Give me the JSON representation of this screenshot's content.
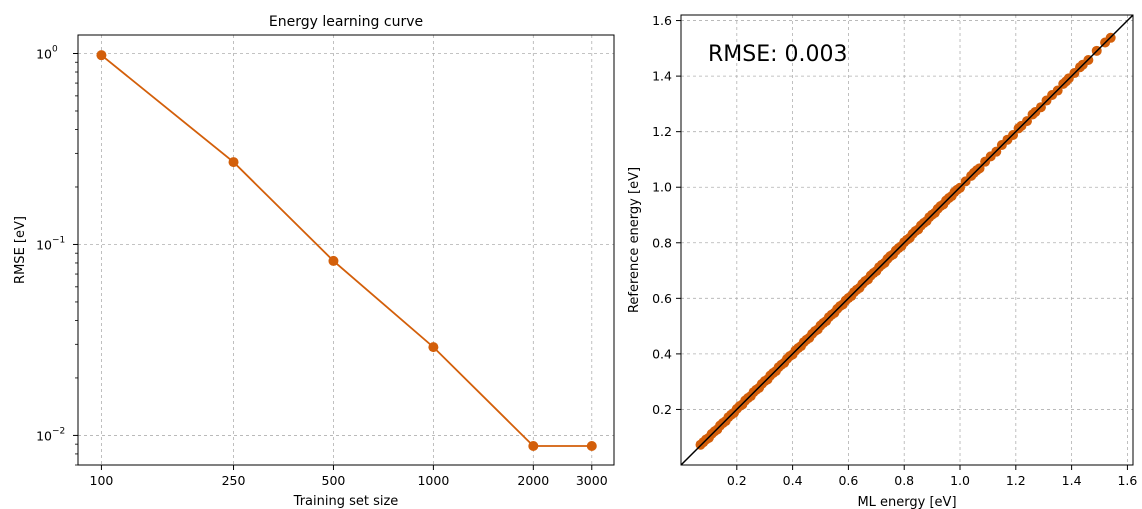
{
  "chart_data": [
    {
      "type": "line",
      "title": "Energy learning curve",
      "xlabel": "Training set size",
      "ylabel": "RMSE [eV]",
      "xscale": "log",
      "yscale": "log",
      "grid": true,
      "color": "#d35f0a",
      "xlim": [
        85,
        3500
      ],
      "ylim": [
        0.007,
        1.25
      ],
      "xticks": [
        {
          "value": 100,
          "label": "100"
        },
        {
          "value": 250,
          "label": "250"
        },
        {
          "value": 500,
          "label": "500"
        },
        {
          "value": 1000,
          "label": "1000"
        },
        {
          "value": 2000,
          "label": "2000"
        },
        {
          "value": 3000,
          "label": "3000"
        }
      ],
      "yticks": [
        {
          "value": 1,
          "base": "10",
          "exp": "0"
        },
        {
          "value": 0.1,
          "base": "10",
          "exp": "−1"
        },
        {
          "value": 0.01,
          "base": "10",
          "exp": "−2"
        }
      ],
      "series": [
        {
          "x": [
            100,
            250,
            500,
            1000,
            2000,
            3000
          ],
          "y": [
            0.98,
            0.27,
            0.082,
            0.029,
            0.0088,
            0.0088
          ]
        }
      ]
    },
    {
      "type": "scatter",
      "title": "",
      "xlabel": "ML energy [eV]",
      "ylabel": "Reference energy [eV]",
      "annotation": "RMSE: 0.003",
      "grid": true,
      "color": "#d35f0a",
      "xlim": [
        0.0,
        1.62
      ],
      "ylim": [
        0.0,
        1.62
      ],
      "xticks": [
        "0.2",
        "0.4",
        "0.6",
        "0.8",
        "1.0",
        "1.2",
        "1.4",
        "1.6"
      ],
      "yticks": [
        "0.2",
        "0.4",
        "0.6",
        "0.8",
        "1.0",
        "1.2",
        "1.4",
        "1.6"
      ],
      "reference_line": {
        "from": [
          0.0,
          0.0
        ],
        "to": [
          1.62,
          1.62
        ],
        "color": "#000000"
      },
      "points": [
        [
          0.07,
          0.073
        ],
        [
          0.08,
          0.082
        ],
        [
          0.09,
          0.092
        ],
        [
          0.1,
          0.098
        ],
        [
          0.11,
          0.112
        ],
        [
          0.12,
          0.121
        ],
        [
          0.13,
          0.128
        ],
        [
          0.14,
          0.142
        ],
        [
          0.15,
          0.151
        ],
        [
          0.16,
          0.158
        ],
        [
          0.17,
          0.172
        ],
        [
          0.18,
          0.181
        ],
        [
          0.19,
          0.188
        ],
        [
          0.2,
          0.202
        ],
        [
          0.21,
          0.212
        ],
        [
          0.22,
          0.218
        ],
        [
          0.23,
          0.232
        ],
        [
          0.24,
          0.241
        ],
        [
          0.25,
          0.248
        ],
        [
          0.26,
          0.262
        ],
        [
          0.27,
          0.271
        ],
        [
          0.28,
          0.278
        ],
        [
          0.29,
          0.292
        ],
        [
          0.3,
          0.302
        ],
        [
          0.31,
          0.308
        ],
        [
          0.32,
          0.322
        ],
        [
          0.33,
          0.331
        ],
        [
          0.34,
          0.338
        ],
        [
          0.35,
          0.352
        ],
        [
          0.36,
          0.361
        ],
        [
          0.37,
          0.368
        ],
        [
          0.38,
          0.382
        ],
        [
          0.39,
          0.392
        ],
        [
          0.4,
          0.398
        ],
        [
          0.41,
          0.412
        ],
        [
          0.42,
          0.421
        ],
        [
          0.43,
          0.428
        ],
        [
          0.44,
          0.442
        ],
        [
          0.45,
          0.451
        ],
        [
          0.46,
          0.458
        ],
        [
          0.47,
          0.472
        ],
        [
          0.48,
          0.482
        ],
        [
          0.49,
          0.488
        ],
        [
          0.5,
          0.502
        ],
        [
          0.51,
          0.511
        ],
        [
          0.52,
          0.518
        ],
        [
          0.53,
          0.532
        ],
        [
          0.54,
          0.541
        ],
        [
          0.55,
          0.548
        ],
        [
          0.56,
          0.562
        ],
        [
          0.57,
          0.572
        ],
        [
          0.58,
          0.578
        ],
        [
          0.59,
          0.592
        ],
        [
          0.6,
          0.601
        ],
        [
          0.61,
          0.608
        ],
        [
          0.62,
          0.622
        ],
        [
          0.63,
          0.631
        ],
        [
          0.64,
          0.638
        ],
        [
          0.65,
          0.652
        ],
        [
          0.66,
          0.662
        ],
        [
          0.67,
          0.668
        ],
        [
          0.68,
          0.682
        ],
        [
          0.69,
          0.691
        ],
        [
          0.7,
          0.698
        ],
        [
          0.71,
          0.712
        ],
        [
          0.72,
          0.721
        ],
        [
          0.73,
          0.728
        ],
        [
          0.74,
          0.742
        ],
        [
          0.75,
          0.752
        ],
        [
          0.76,
          0.758
        ],
        [
          0.77,
          0.772
        ],
        [
          0.78,
          0.781
        ],
        [
          0.79,
          0.788
        ],
        [
          0.8,
          0.802
        ],
        [
          0.81,
          0.811
        ],
        [
          0.82,
          0.818
        ],
        [
          0.83,
          0.832
        ],
        [
          0.84,
          0.842
        ],
        [
          0.85,
          0.848
        ],
        [
          0.86,
          0.862
        ],
        [
          0.87,
          0.871
        ],
        [
          0.88,
          0.878
        ],
        [
          0.89,
          0.892
        ],
        [
          0.9,
          0.901
        ],
        [
          0.91,
          0.908
        ],
        [
          0.92,
          0.922
        ],
        [
          0.93,
          0.932
        ],
        [
          0.94,
          0.938
        ],
        [
          0.95,
          0.952
        ],
        [
          0.96,
          0.961
        ],
        [
          0.97,
          0.968
        ],
        [
          0.98,
          0.982
        ],
        [
          0.99,
          0.991
        ],
        [
          1.0,
          0.998
        ],
        [
          1.02,
          1.021
        ],
        [
          1.04,
          1.041
        ],
        [
          1.05,
          1.052
        ],
        [
          1.06,
          1.061
        ],
        [
          1.07,
          1.068
        ],
        [
          1.09,
          1.092
        ],
        [
          1.11,
          1.111
        ],
        [
          1.13,
          1.128
        ],
        [
          1.15,
          1.152
        ],
        [
          1.17,
          1.171
        ],
        [
          1.19,
          1.188
        ],
        [
          1.21,
          1.212
        ],
        [
          1.22,
          1.221
        ],
        [
          1.24,
          1.238
        ],
        [
          1.26,
          1.262
        ],
        [
          1.27,
          1.271
        ],
        [
          1.29,
          1.288
        ],
        [
          1.31,
          1.312
        ],
        [
          1.33,
          1.332
        ],
        [
          1.35,
          1.348
        ],
        [
          1.37,
          1.372
        ],
        [
          1.38,
          1.381
        ],
        [
          1.39,
          1.392
        ],
        [
          1.41,
          1.411
        ],
        [
          1.43,
          1.432
        ],
        [
          1.44,
          1.441
        ],
        [
          1.46,
          1.458
        ],
        [
          1.49,
          1.491
        ],
        [
          1.52,
          1.521
        ],
        [
          1.54,
          1.538
        ]
      ]
    }
  ]
}
